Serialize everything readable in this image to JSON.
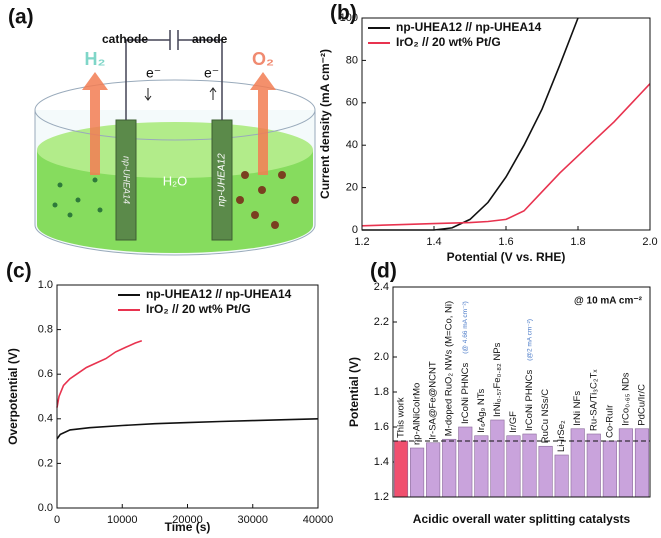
{
  "diagram": {
    "panel_label": "(a)",
    "cathode": "cathode",
    "anode": "anode",
    "electron_left": "e⁻",
    "electron_right": "e⁻",
    "gas_left": "H₂",
    "gas_right": "O₂",
    "water": "H₂O",
    "electrode_left": "np-UHEA14",
    "electrode_right": "np-UHEA12"
  },
  "chart_data": [
    {
      "type": "line",
      "panel_label": "(b)",
      "xlabel": "Potential (V vs. RHE)",
      "ylabel": "Current density (mA cm⁻²)",
      "xlim": [
        1.2,
        2.0
      ],
      "xticks": [
        1.2,
        1.4,
        1.6,
        1.8,
        {
          "value": 2,
          "label": "2.0"
        }
      ],
      "ylim": [
        0,
        100
      ],
      "yticks": [
        0,
        20,
        40,
        60,
        80,
        100
      ],
      "legend": "upper left",
      "series": [
        {
          "name": "np-UHEA12 // np-UHEA14",
          "color": "#111111",
          "x": [
            1.2,
            1.4,
            1.45,
            1.5,
            1.55,
            1.6,
            1.65,
            1.7,
            1.75,
            1.8
          ],
          "values": [
            0,
            0,
            1,
            5,
            13,
            25,
            40,
            57,
            78,
            100
          ]
        },
        {
          "name": "IrO₂ // 20 wt% Pt/G",
          "color": "#e8334f",
          "x": [
            1.2,
            1.3,
            1.4,
            1.5,
            1.55,
            1.6,
            1.65,
            1.7,
            1.75,
            1.8,
            1.85,
            1.9,
            1.95,
            2.0
          ],
          "values": [
            2,
            2.5,
            3,
            3.5,
            4,
            5,
            9,
            18,
            27,
            35,
            43,
            51,
            60,
            69
          ]
        }
      ]
    },
    {
      "type": "line",
      "panel_label": "(c)",
      "xlabel": "Time (s)",
      "ylabel": "Overpotential (V)",
      "xlim": [
        0,
        40000
      ],
      "xticks": [
        0,
        10000,
        20000,
        30000,
        40000
      ],
      "ylim": [
        0,
        1
      ],
      "yticks": [
        {
          "value": 0,
          "label": "0.0"
        },
        0.2,
        0.4,
        0.6,
        0.8,
        {
          "value": 1,
          "label": "1.0"
        }
      ],
      "legend": "upper right",
      "series": [
        {
          "name": "np-UHEA12 // np-UHEA14",
          "color": "#111111",
          "x": [
            0,
            500,
            2000,
            5000,
            10000,
            15000,
            20000,
            25000,
            30000,
            35000,
            40000
          ],
          "values": [
            0.31,
            0.33,
            0.35,
            0.36,
            0.37,
            0.378,
            0.383,
            0.388,
            0.392,
            0.396,
            0.4
          ]
        },
        {
          "name": "IrO₂ // 20 wt% Pt/G",
          "color": "#e8334f",
          "x": [
            0,
            300,
            1000,
            2000,
            3000,
            4500,
            6000,
            7500,
            9000,
            10500,
            12000,
            13000
          ],
          "values": [
            0.45,
            0.5,
            0.55,
            0.58,
            0.6,
            0.63,
            0.65,
            0.67,
            0.7,
            0.72,
            0.74,
            0.75
          ]
        }
      ]
    },
    {
      "type": "bar",
      "panel_label": "(d)",
      "xlabel": "Acidic overall water splitting catalysts",
      "ylabel": "Potential (V)",
      "annotation": "@ 10 mA cm⁻²",
      "ylim": [
        1.2,
        2.4
      ],
      "yticks": [
        1.2,
        1.4,
        1.6,
        1.8,
        {
          "value": 2,
          "label": "2.0"
        },
        2.2,
        2.4
      ],
      "categories": [
        "This work",
        "np-AlNiCoIrMo",
        "Ir-SA@Fe@NCNT",
        "M-doped RuO₂ NWs (M=Co, Ni)",
        "IrCoNi PHNCs",
        "Ir₆Ag₉ NTs",
        "IrNi₀.₅₇Fe₀.₈₂ NPs",
        "Ir/GF",
        "IrCoNi PHNCs",
        "RuCu NSs/C",
        "Li-IrSe₂",
        "IrNi NFs",
        "Ru-SA/Ti₃C₂Tₓ",
        "Co-RuIr",
        "IrCo₀.₆₅ NDs",
        "PdCu/Ir/C"
      ],
      "category_notes": [
        null,
        null,
        null,
        null,
        "(@ 4.66 mA cm⁻²)",
        null,
        null,
        null,
        "(@2 mA cm⁻²)",
        null,
        null,
        null,
        null,
        null,
        null,
        null
      ],
      "values": [
        1.52,
        1.48,
        1.51,
        1.53,
        1.6,
        1.55,
        1.64,
        1.55,
        1.56,
        1.49,
        1.44,
        1.59,
        1.56,
        1.52,
        1.59,
        1.59
      ],
      "colors": [
        "#f0506e",
        "#c9a3dc",
        "#c9a3dc",
        "#c9a3dc",
        "#c9a3dc",
        "#c9a3dc",
        "#c9a3dc",
        "#c9a3dc",
        "#c9a3dc",
        "#c9a3dc",
        "#c9a3dc",
        "#c9a3dc",
        "#c9a3dc",
        "#c9a3dc",
        "#c9a3dc",
        "#c9a3dc"
      ],
      "reference_line": 1.52
    }
  ]
}
